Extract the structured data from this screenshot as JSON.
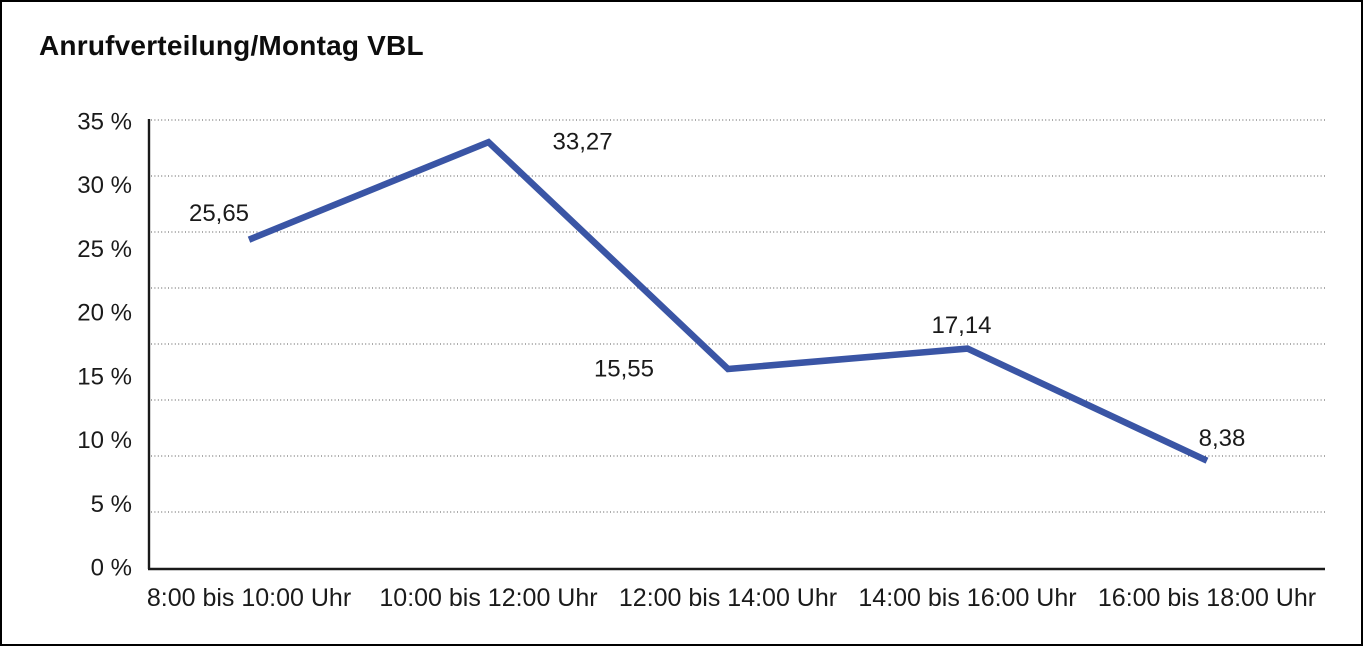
{
  "window": {
    "background": "#ffffff",
    "border_color": "#000000"
  },
  "chart": {
    "title": "Anrufverteilung/Montag VBL"
  },
  "chart_data": {
    "type": "line",
    "title": "Anrufverteilung/Montag VBL",
    "categories": [
      "8:00 bis 10:00 Uhr",
      "10:00 bis 12:00 Uhr",
      "12:00 bis 14:00 Uhr",
      "14:00 bis 16:00 Uhr",
      "16:00 bis 18:00 Uhr"
    ],
    "values": [
      25.65,
      33.27,
      15.55,
      17.14,
      8.38
    ],
    "point_labels": [
      "25,65",
      "33,27",
      "15,55",
      "17,14",
      "8,38"
    ],
    "point_label_positions": [
      "above-left",
      "right",
      "left",
      "above",
      "above-right"
    ],
    "xlabel": "",
    "ylabel": "",
    "ylim": [
      0,
      35
    ],
    "ytick_values": [
      35,
      30,
      25,
      20,
      15,
      10,
      5,
      0
    ],
    "ytick_labels": [
      "35 %",
      "30 %",
      "25 %",
      "20 %",
      "15 %",
      "10 %",
      "5 %",
      "0 %"
    ],
    "grid": "horizontal-dotted",
    "grid_divisions": 8,
    "legend": "none",
    "colors": {
      "line": "#3A55A5",
      "text": "#1a1a1a",
      "grid_dots": "#555555",
      "axis": "#1a1a1a",
      "background": "#ffffff"
    }
  }
}
